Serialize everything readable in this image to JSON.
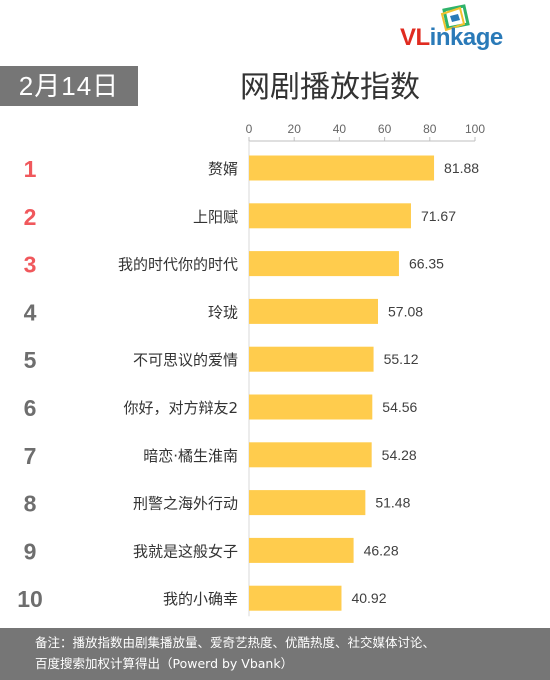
{
  "logo": {
    "accent": "VL",
    "rest": "inkage"
  },
  "date_label": "2月14日",
  "chart_data": {
    "type": "bar",
    "orientation": "horizontal",
    "title": "网剧播放指数",
    "ranks": [
      "1",
      "2",
      "3",
      "4",
      "5",
      "6",
      "7",
      "8",
      "9",
      "10"
    ],
    "categories": [
      "赘婿",
      "上阳赋",
      "我的时代你的时代",
      "玲珑",
      "不可思议的爱情",
      "你好，对方辩友2",
      "暗恋·橘生淮南",
      "刑警之海外行动",
      "我就是这般女子",
      "我的小确幸"
    ],
    "values": [
      81.88,
      71.67,
      66.35,
      57.08,
      55.12,
      54.56,
      54.28,
      51.48,
      46.28,
      40.92
    ],
    "value_labels": [
      "81.88",
      "71.67",
      "66.35",
      "57.08",
      "55.12",
      "54.56",
      "54.28",
      "51.48",
      "46.28",
      "40.92"
    ],
    "xlim": [
      0,
      100
    ],
    "x_ticks": [
      0,
      20,
      40,
      60,
      80,
      100
    ],
    "axis_position": "top",
    "bar_color": "#FFCC4D",
    "top_rank_color": "#F0585C",
    "other_rank_color": "#6E6E6E",
    "grid": false
  },
  "footnote": {
    "line1": "备注：播放指数由剧集播放量、爱奇艺热度、优酷热度、社交媒体讨论、",
    "line2": "百度搜索加权计算得出（Powerd by Vbank）"
  }
}
